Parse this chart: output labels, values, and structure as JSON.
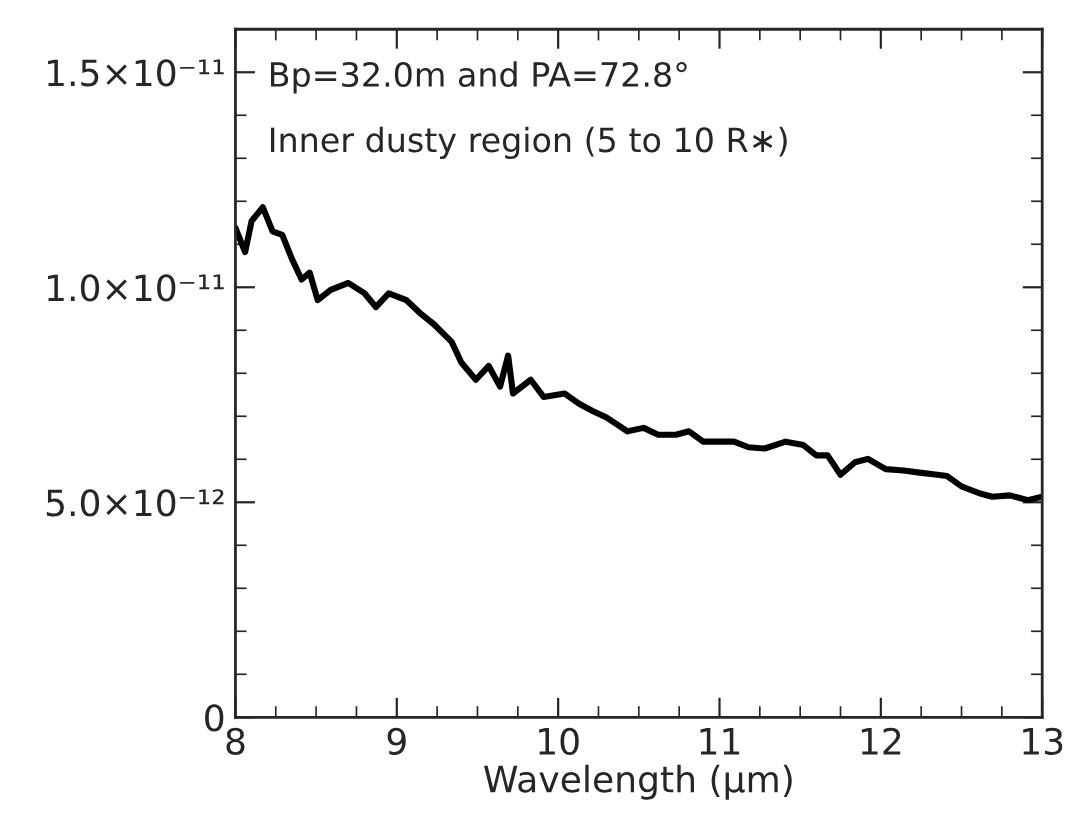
{
  "chart_data": {
    "type": "line",
    "xlabel": "Wavelength (μm)",
    "annotations": [
      "Bp=32.0m and PA=72.8°",
      "Inner dusty region (5 to 10 R∗)"
    ],
    "xlim": [
      8,
      13
    ],
    "xticks": [
      8,
      9,
      10,
      11,
      12,
      13
    ],
    "ylim": [
      0,
      1.6e-11
    ],
    "yticks": [
      {
        "value": 0,
        "label": "0"
      },
      {
        "value": 5e-12,
        "label": "5.0×10⁻¹²"
      },
      {
        "value": 1e-11,
        "label": "1.0×10⁻¹¹"
      },
      {
        "value": 1.5e-11,
        "label": "1.5×10⁻¹¹"
      }
    ],
    "grid": false,
    "legend": false,
    "marker": "none",
    "line_style": "solid",
    "series": [
      {
        "color": "#000000",
        "x": [
          8.0,
          8.06,
          8.1,
          8.17,
          8.23,
          8.29,
          8.35,
          8.41,
          8.46,
          8.51,
          8.59,
          8.7,
          8.8,
          8.87,
          8.95,
          9.06,
          9.15,
          9.23,
          9.34,
          9.4,
          9.49,
          9.57,
          9.64,
          9.69,
          9.72,
          9.83,
          9.91,
          10.04,
          10.13,
          10.21,
          10.3,
          10.43,
          10.53,
          10.62,
          10.73,
          10.81,
          10.9,
          11.0,
          11.09,
          11.18,
          11.28,
          11.41,
          11.52,
          11.6,
          11.67,
          11.75,
          11.84,
          11.92,
          12.03,
          12.14,
          12.24,
          12.35,
          12.41,
          12.5,
          12.61,
          12.69,
          12.8,
          12.91,
          13.0
        ],
        "values": [
          1.138e-11,
          1.082e-11,
          1.154e-11,
          1.186e-11,
          1.13e-11,
          1.122e-11,
          1.066e-11,
          1.018e-11,
          1.034e-11,
          9.7e-12,
          9.94e-12,
          1.01e-11,
          9.86e-12,
          9.54e-12,
          9.86e-12,
          9.7e-12,
          9.38e-12,
          9.14e-12,
          8.73e-12,
          8.25e-12,
          7.85e-12,
          8.17e-12,
          7.69e-12,
          8.41e-12,
          7.53e-12,
          7.85e-12,
          7.45e-12,
          7.53e-12,
          7.29e-12,
          7.13e-12,
          6.97e-12,
          6.65e-12,
          6.73e-12,
          6.57e-12,
          6.57e-12,
          6.65e-12,
          6.41e-12,
          6.41e-12,
          6.41e-12,
          6.28e-12,
          6.25e-12,
          6.41e-12,
          6.33e-12,
          6.09e-12,
          6.09e-12,
          5.64e-12,
          5.93e-12,
          6.01e-12,
          5.77e-12,
          5.74e-12,
          5.69e-12,
          5.64e-12,
          5.61e-12,
          5.37e-12,
          5.21e-12,
          5.13e-12,
          5.16e-12,
          5.05e-12,
          5.13e-12
        ]
      }
    ]
  }
}
